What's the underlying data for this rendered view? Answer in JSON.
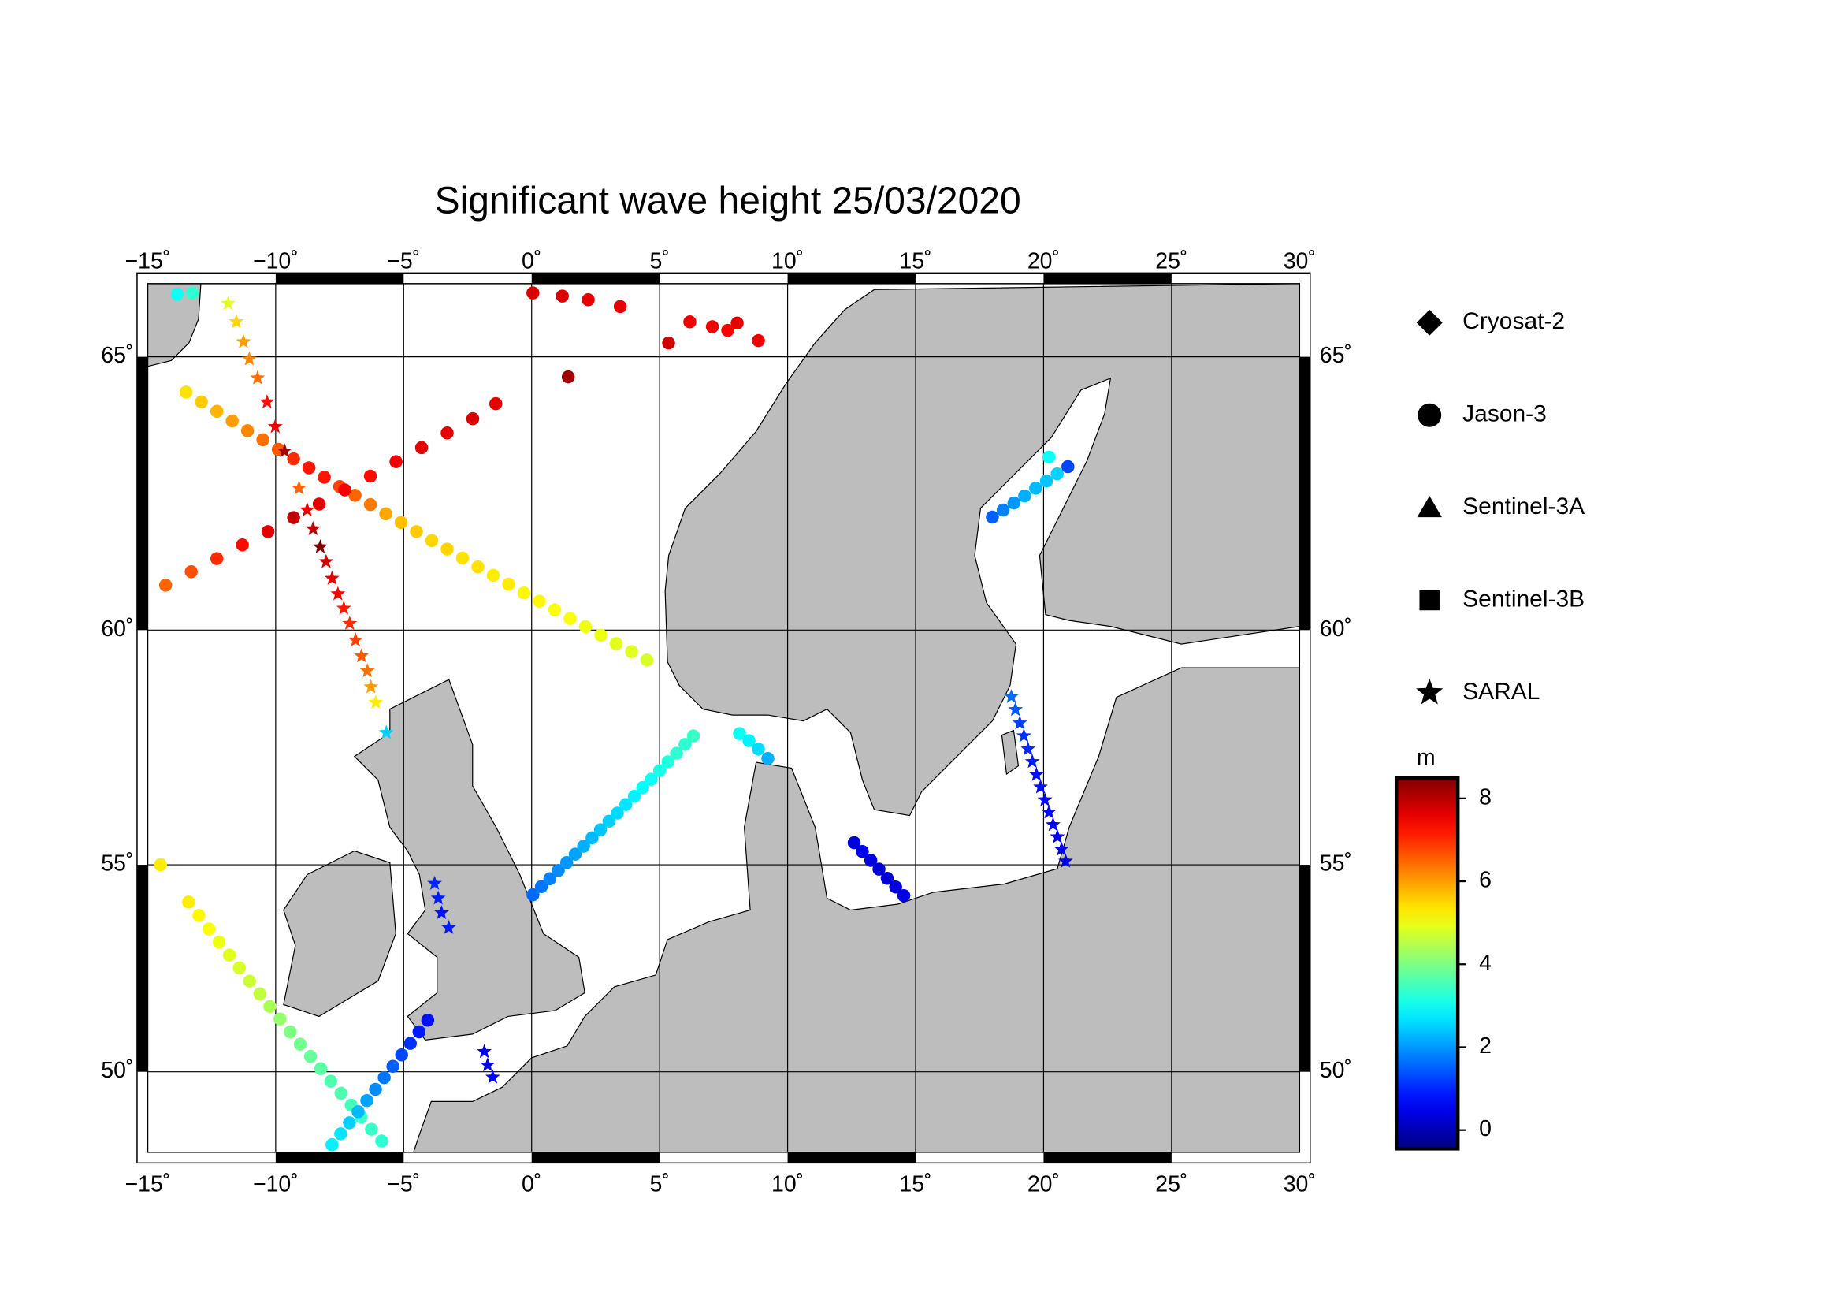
{
  "chart_data": {
    "type": "map-scatter",
    "title": "Significant wave height 25/03/2020",
    "projection": "mercator",
    "xlim": [
      -15,
      30
    ],
    "ylim": [
      47.9,
      66.2
    ],
    "xticks": [
      {
        "value": -15,
        "label": "−15˚"
      },
      {
        "value": -10,
        "label": "−10˚"
      },
      {
        "value": -5,
        "label": "−5˚"
      },
      {
        "value": 0,
        "label": "0˚"
      },
      {
        "value": 5,
        "label": "5˚"
      },
      {
        "value": 10,
        "label": "10˚"
      },
      {
        "value": 15,
        "label": "15˚"
      },
      {
        "value": 20,
        "label": "20˚"
      },
      {
        "value": 25,
        "label": "25˚"
      },
      {
        "value": 30,
        "label": "30˚"
      }
    ],
    "yticks": [
      {
        "value": 50,
        "label": "50˚"
      },
      {
        "value": 55,
        "label": "55˚"
      },
      {
        "value": 60,
        "label": "60˚"
      },
      {
        "value": 65,
        "label": "65˚"
      }
    ],
    "grid": true,
    "colormap": "jet",
    "clim": [
      -0.45,
      8.5
    ],
    "cticks": [
      0,
      2,
      4,
      6,
      8
    ],
    "colorbar_label": "m",
    "series": [
      {
        "name": "Cryosat-2",
        "marker": "diamond",
        "x": [],
        "y": [],
        "values": []
      },
      {
        "name": "Jason-3",
        "marker": "circle",
        "x": [
          -13.5,
          -12.9,
          -12.3,
          -11.7,
          -11.1,
          -10.5,
          -9.9,
          -9.3,
          -8.7,
          -8.1,
          -7.5,
          -6.9,
          -6.3,
          -5.7,
          -5.1,
          -4.5,
          -3.9,
          -3.3,
          -2.7,
          -2.1,
          -1.5,
          -0.9,
          -0.3,
          0.3,
          0.9,
          1.5,
          2.1,
          2.7,
          3.3,
          3.9,
          4.5,
          -14.3,
          -13.3,
          -12.3,
          -11.3,
          -10.3,
          -9.3,
          -8.3,
          -7.3,
          -6.3,
          -5.3,
          -4.3,
          -3.3,
          -2.3,
          -1.4,
          0.05,
          1.2,
          2.21,
          3.46,
          5.35,
          6.18,
          7.06,
          7.66,
          8.03,
          8.86,
          1.43,
          -13.4,
          -13.0,
          -12.61,
          -12.21,
          -11.81,
          -11.42,
          -11.02,
          -10.62,
          -10.23,
          -9.83,
          -9.43,
          -9.04,
          -8.64,
          -8.24,
          -7.85,
          -7.45,
          -7.05,
          -6.66,
          -6.26,
          -5.86,
          -7.8,
          -7.46,
          -7.12,
          -6.78,
          -6.44,
          -6.1,
          -5.76,
          -5.42,
          -5.08,
          -4.74,
          -4.4,
          -4.06,
          0.05,
          0.38,
          0.71,
          1.04,
          1.37,
          1.7,
          2.03,
          2.36,
          2.69,
          3.02,
          3.35,
          3.68,
          4.01,
          4.34,
          4.67,
          5.0,
          5.33,
          5.66,
          5.99,
          6.32,
          8.12,
          8.49,
          8.86,
          9.23,
          12.6,
          12.92,
          13.25,
          13.57,
          13.89,
          14.22,
          14.54,
          18.0,
          18.42,
          18.84,
          19.26,
          19.69,
          20.11,
          20.53,
          20.95,
          20.21,
          -14.5,
          -13.85,
          -13.25
        ],
        "y": [
          64.4,
          64.23,
          64.07,
          63.9,
          63.73,
          63.57,
          63.4,
          63.23,
          63.07,
          62.9,
          62.73,
          62.57,
          62.4,
          62.23,
          62.07,
          61.9,
          61.73,
          61.57,
          61.4,
          61.23,
          61.07,
          60.9,
          60.73,
          60.57,
          60.4,
          60.23,
          60.07,
          59.9,
          59.73,
          59.57,
          59.4,
          60.88,
          61.14,
          61.39,
          61.65,
          61.9,
          62.16,
          62.41,
          62.67,
          62.92,
          63.18,
          63.43,
          63.69,
          63.94,
          64.2,
          66.05,
          66.0,
          65.94,
          65.83,
          65.23,
          65.58,
          65.5,
          65.44,
          65.56,
          65.27,
          64.66,
          54.14,
          53.83,
          53.51,
          53.2,
          52.89,
          52.58,
          52.26,
          51.95,
          51.64,
          51.33,
          51.01,
          50.7,
          50.39,
          50.08,
          49.76,
          49.45,
          49.14,
          48.83,
          48.51,
          48.2,
          48.1,
          48.39,
          48.68,
          48.97,
          49.26,
          49.55,
          49.85,
          50.14,
          50.43,
          50.72,
          51.01,
          51.3,
          54.31,
          54.5,
          54.68,
          54.87,
          55.05,
          55.24,
          55.42,
          55.61,
          55.79,
          55.98,
          56.16,
          56.35,
          56.53,
          56.72,
          56.9,
          57.09,
          57.28,
          57.46,
          57.65,
          57.83,
          57.88,
          57.73,
          57.55,
          57.35,
          55.5,
          55.3,
          55.1,
          54.9,
          54.69,
          54.49,
          54.29,
          62.17,
          62.3,
          62.43,
          62.56,
          62.7,
          62.83,
          62.96,
          63.09,
          63.26,
          55.0,
          66.03,
          66.05
        ],
        "values": [
          5.4,
          5.6,
          5.8,
          6.0,
          6.2,
          6.4,
          6.6,
          7.0,
          7.2,
          7.2,
          6.8,
          6.5,
          6.3,
          5.9,
          5.7,
          5.6,
          5.5,
          5.5,
          5.4,
          5.4,
          5.3,
          5.3,
          5.2,
          5.2,
          5.1,
          5.1,
          5.0,
          5.0,
          4.9,
          4.9,
          4.8,
          6.5,
          6.7,
          7.0,
          7.3,
          7.6,
          7.9,
          7.6,
          7.4,
          7.3,
          7.5,
          7.6,
          7.6,
          7.7,
          7.6,
          7.7,
          7.7,
          7.6,
          7.6,
          7.8,
          7.5,
          7.5,
          7.4,
          7.6,
          7.5,
          8.2,
          5.3,
          5.2,
          5.1,
          5.0,
          4.9,
          4.8,
          4.7,
          4.6,
          4.4,
          4.2,
          4.0,
          3.9,
          3.8,
          3.7,
          3.6,
          3.6,
          3.5,
          3.4,
          3.4,
          3.3,
          2.8,
          2.7,
          2.5,
          2.3,
          2.1,
          1.9,
          1.7,
          1.5,
          1.3,
          1.1,
          0.9,
          0.8,
          1.6,
          1.7,
          1.8,
          1.9,
          2.0,
          2.1,
          2.2,
          2.3,
          2.4,
          2.5,
          2.6,
          2.7,
          2.8,
          2.9,
          3.0,
          3.1,
          3.2,
          3.3,
          3.3,
          3.4,
          3.0,
          2.8,
          2.6,
          2.2,
          0.4,
          0.5,
          0.4,
          0.3,
          0.3,
          0.4,
          0.5,
          1.5,
          1.8,
          2.0,
          2.2,
          2.3,
          2.4,
          2.5,
          1.3,
          3.0,
          5.3,
          3.0,
          3.3
        ]
      },
      {
        "name": "Sentinel-3A",
        "marker": "triangle",
        "x": [],
        "y": [],
        "values": []
      },
      {
        "name": "Sentinel-3B",
        "marker": "square",
        "x": [],
        "y": [],
        "values": []
      },
      {
        "name": "SARAL",
        "marker": "star",
        "x": [
          -11.86,
          -11.54,
          -11.26,
          -11.03,
          -10.71,
          -10.34,
          -10.02,
          -9.65,
          -9.09,
          -8.77,
          -8.54,
          -8.26,
          -8.03,
          -7.8,
          -7.57,
          -7.34,
          -7.11,
          -6.88,
          -6.65,
          -6.42,
          -6.28,
          -6.09,
          -5.68,
          -3.79,
          -3.65,
          -3.52,
          -3.24,
          -1.85,
          -1.72,
          -1.52,
          18.74,
          18.9,
          19.07,
          19.23,
          19.39,
          19.56,
          19.72,
          19.88,
          20.05,
          20.21,
          20.37,
          20.54,
          20.7,
          20.86
        ],
        "y": [
          65.88,
          65.58,
          65.25,
          64.96,
          64.64,
          64.23,
          63.8,
          63.37,
          62.7,
          62.3,
          61.95,
          61.61,
          61.33,
          61.01,
          60.71,
          60.43,
          60.13,
          59.8,
          59.48,
          59.18,
          58.85,
          58.53,
          57.9,
          54.57,
          54.23,
          53.89,
          53.54,
          50.51,
          50.17,
          49.86,
          58.65,
          58.38,
          58.1,
          57.83,
          57.55,
          57.28,
          57.0,
          56.73,
          56.45,
          56.18,
          55.9,
          55.63,
          55.35,
          55.08
        ],
        "values": [
          4.9,
          5.5,
          6.0,
          6.2,
          6.4,
          7.3,
          7.5,
          8.2,
          6.5,
          7.6,
          8.0,
          8.5,
          7.8,
          7.6,
          7.4,
          7.2,
          7.0,
          6.8,
          6.6,
          6.4,
          6.0,
          5.3,
          2.5,
          1.0,
          0.9,
          0.8,
          0.9,
          0.6,
          0.5,
          0.7,
          1.6,
          1.4,
          1.2,
          1.1,
          1.0,
          0.9,
          0.8,
          0.8,
          0.7,
          0.7,
          0.6,
          0.6,
          0.5,
          0.5
        ]
      }
    ]
  }
}
